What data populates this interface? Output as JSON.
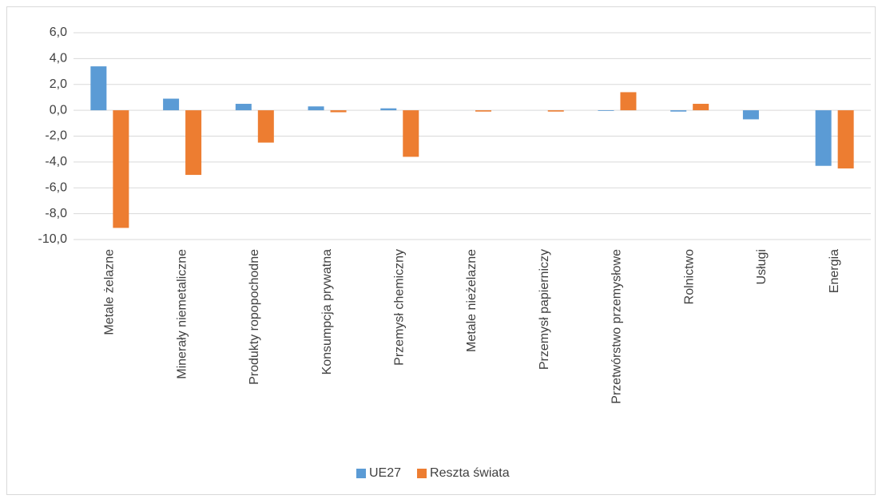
{
  "chart_data": {
    "type": "bar",
    "categories": [
      "Metale żelazne",
      "Minerały niemetaliczne",
      "Produkty ropopochodne",
      "Konsumpcja prywatna",
      "Przemysł chemiczny",
      "Metale nieżelazne",
      "Przemysł papierniczy",
      "Przetwórstwo przemysłowe",
      "Rolnictwo",
      "Usługi",
      "Energia"
    ],
    "series": [
      {
        "name": "UE27",
        "color": "#5b9bd5",
        "values": [
          3.4,
          0.9,
          0.5,
          0.3,
          0.15,
          0.0,
          0.0,
          -0.05,
          -0.1,
          -0.7,
          -4.3
        ]
      },
      {
        "name": "Reszta świata",
        "color": "#ed7d31",
        "values": [
          -9.1,
          -5.0,
          -2.5,
          -0.15,
          -3.6,
          -0.1,
          -0.1,
          1.4,
          0.5,
          0.0,
          -4.5
        ]
      }
    ],
    "ylim": [
      -10,
      6
    ],
    "yticks": [
      {
        "value": -10,
        "label": "-10,0"
      },
      {
        "value": -8,
        "label": "-8,0"
      },
      {
        "value": -6,
        "label": "-6,0"
      },
      {
        "value": -4,
        "label": "-4,0"
      },
      {
        "value": -2,
        "label": "-2,0"
      },
      {
        "value": 0,
        "label": "0,0"
      },
      {
        "value": 2,
        "label": "2,0"
      },
      {
        "value": 4,
        "label": "4,0"
      },
      {
        "value": 6,
        "label": "6,0"
      }
    ],
    "grid": true,
    "legend": "bottom"
  }
}
